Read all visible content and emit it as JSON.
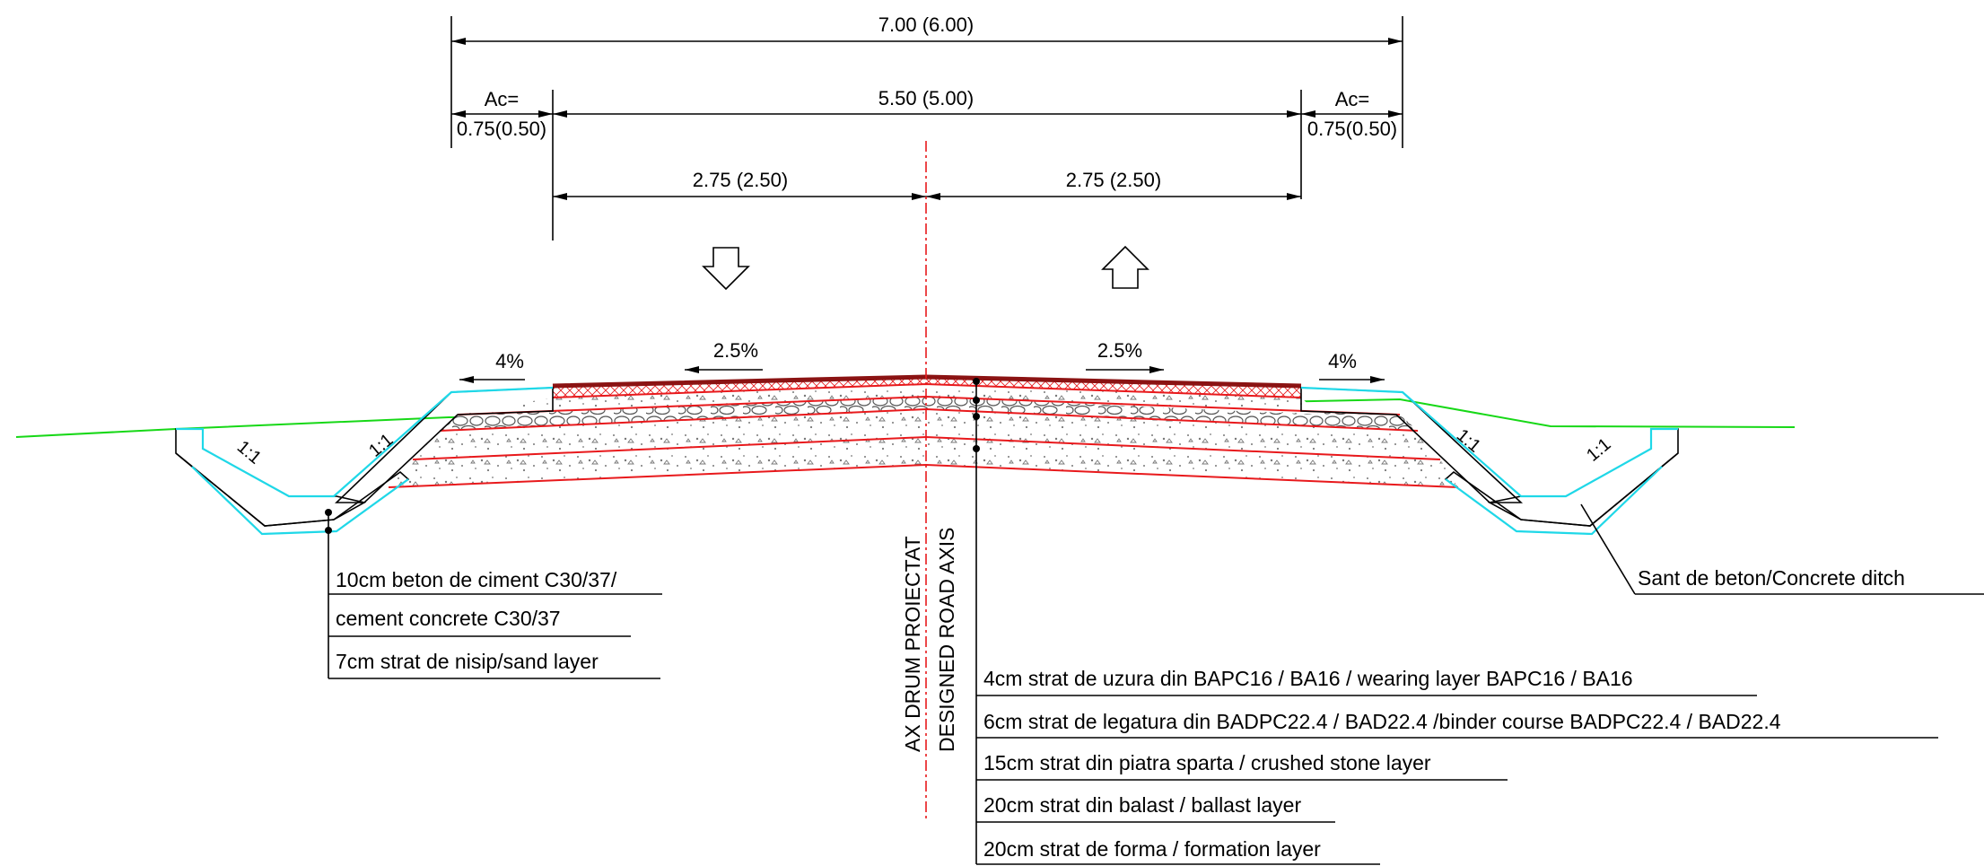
{
  "dimensions": {
    "total_width": "7.00 (6.00)",
    "carriageway": "5.50 (5.00)",
    "shoulder_label": "Ac=",
    "shoulder_left_value": "0.75(0.50)",
    "shoulder_right_value": "0.75(0.50)",
    "lane_left": "2.75 (2.50)",
    "lane_right": "2.75 (2.50)"
  },
  "slopes": {
    "shoulder_left": "4%",
    "lane_left": "2.5%",
    "lane_right": "2.5%",
    "shoulder_right": "4%",
    "embankment_1": "1:1",
    "embankment_2": "1:1",
    "embankment_3": "1:1",
    "embankment_4": "1:1"
  },
  "axis": {
    "line1": "AX DRUM PROIECTAT",
    "line2": "DESIGNED ROAD AXIS"
  },
  "ditch_labels": [
    "10cm beton de ciment C30/37/",
    "cement concrete C30/37",
    "7cm strat de nisip/sand layer"
  ],
  "ditch_callout": "Sant de beton/Concrete ditch",
  "pavement_layers": [
    "4cm strat de uzura din BAPC16 / BA16 / wearing layer BAPC16 / BA16",
    "6cm strat de legatura din BADPC22.4 / BAD22.4 /binder course BADPC22.4 / BAD22.4",
    "15cm strat din piatra sparta / crushed stone layer",
    "20cm strat din balast / ballast layer",
    "20cm strat de forma / formation layer"
  ],
  "colors": {
    "layer_lines": "#e8191c",
    "ditch_outline": "#1fd8e8",
    "terrain": "#17d817",
    "road_axis": "#e8191c"
  }
}
